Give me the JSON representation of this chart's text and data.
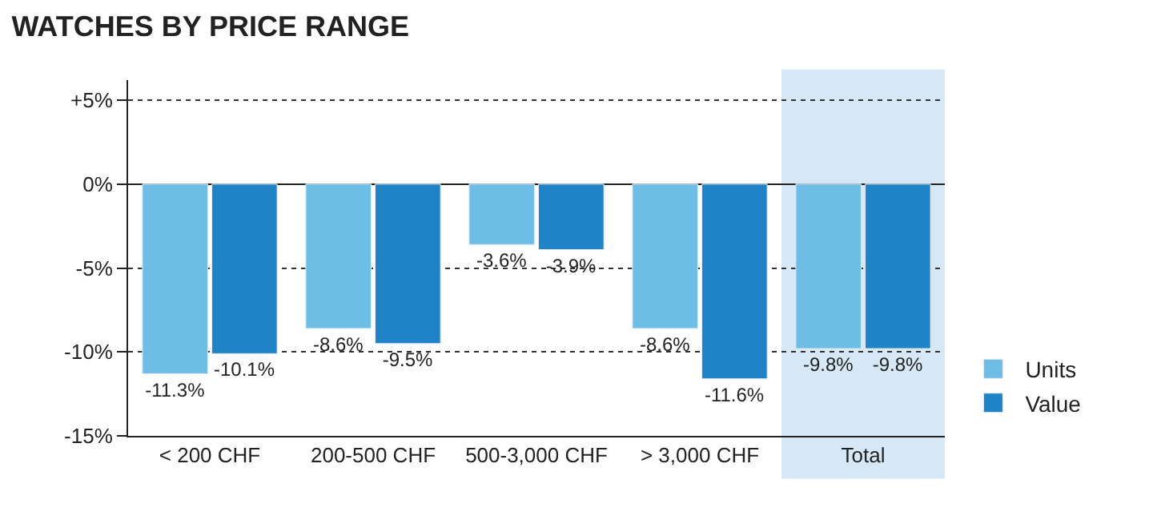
{
  "chart_data": {
    "type": "bar",
    "title": "WATCHES BY PRICE RANGE",
    "categories": [
      "< 200 CHF",
      "200-500 CHF",
      "500-3,000 CHF",
      "> 3,000 CHF",
      "Total"
    ],
    "series": [
      {
        "name": "Units",
        "color": "#6dbde6",
        "values": [
          -11.3,
          -8.6,
          -3.6,
          -8.6,
          -9.8
        ],
        "value_labels": [
          "-11.3%",
          "-8.6%",
          "-3.6%",
          "-8.6%",
          "-9.8%"
        ]
      },
      {
        "name": "Value",
        "color": "#1f84c6",
        "values": [
          -10.1,
          -9.5,
          -3.9,
          -11.6,
          -9.8
        ],
        "value_labels": [
          "-10.1%",
          "-9.5%",
          "-3.9%",
          "-11.6%",
          "-9.8%"
        ]
      }
    ],
    "ylim": [
      -15,
      6.2
    ],
    "yticks": [
      {
        "value": 5,
        "label": "+5%"
      },
      {
        "value": 0,
        "label": "0%"
      },
      {
        "value": -5,
        "label": "-5%"
      },
      {
        "value": -10,
        "label": "-10%"
      },
      {
        "value": -15,
        "label": "-15%"
      }
    ],
    "bands": [
      {
        "axis": "x",
        "from": "Total",
        "to": "Total",
        "color": "#d6e8f5"
      }
    ],
    "grid": "y",
    "legend": "bottom right"
  }
}
